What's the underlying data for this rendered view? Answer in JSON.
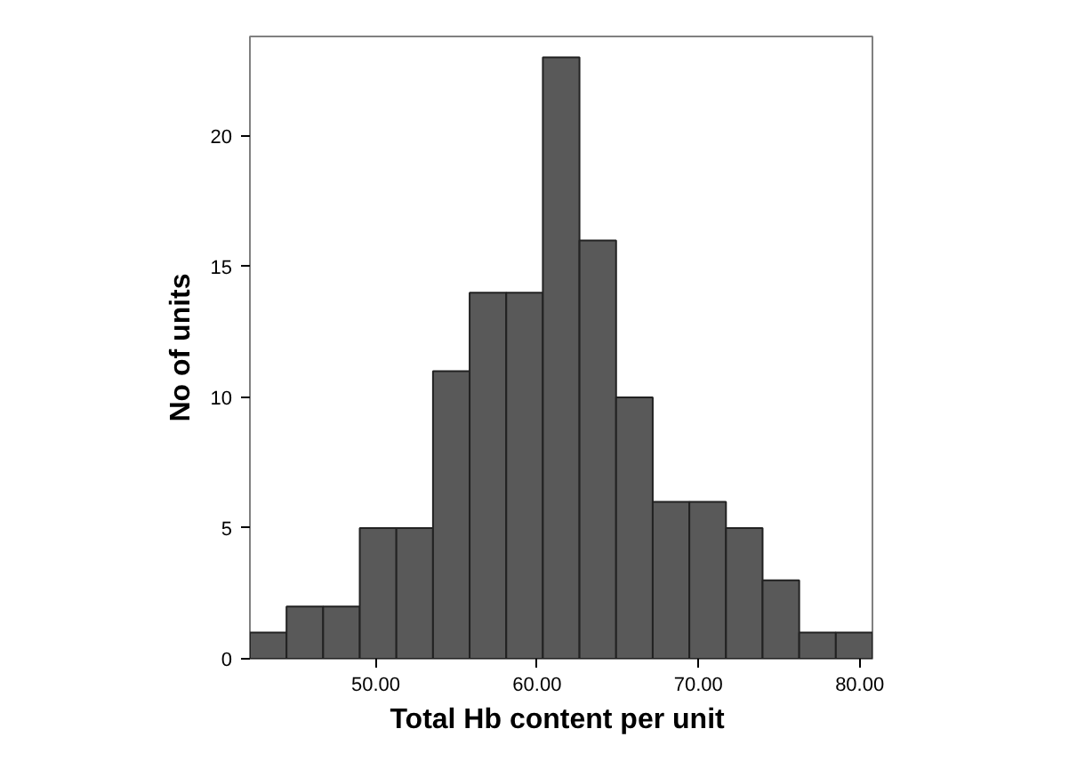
{
  "chart_data": {
    "type": "histogram",
    "xlabel": "Total Hb content  per unit",
    "ylabel": "No of units",
    "color": "#595959",
    "bins": [
      42.2,
      44.47,
      46.74,
      49.01,
      51.28,
      53.55,
      55.82,
      58.09,
      60.36,
      62.63,
      64.9,
      67.17,
      69.44,
      71.71,
      73.98,
      76.25,
      78.52,
      80.79
    ],
    "values": [
      1,
      2,
      2,
      5,
      5,
      11,
      14,
      14,
      23,
      16,
      10,
      6,
      6,
      5,
      3,
      1,
      1
    ],
    "xlim": [
      42.2,
      80.79
    ],
    "ylim": [
      0,
      23.8
    ],
    "xticks": [
      {
        "value": 50,
        "label": "50.00"
      },
      {
        "value": 60,
        "label": "60.00"
      },
      {
        "value": 70,
        "label": "70.00"
      },
      {
        "value": 80,
        "label": "80.00"
      }
    ],
    "yticks": [
      0,
      5,
      10,
      15,
      20
    ],
    "grid": false
  }
}
